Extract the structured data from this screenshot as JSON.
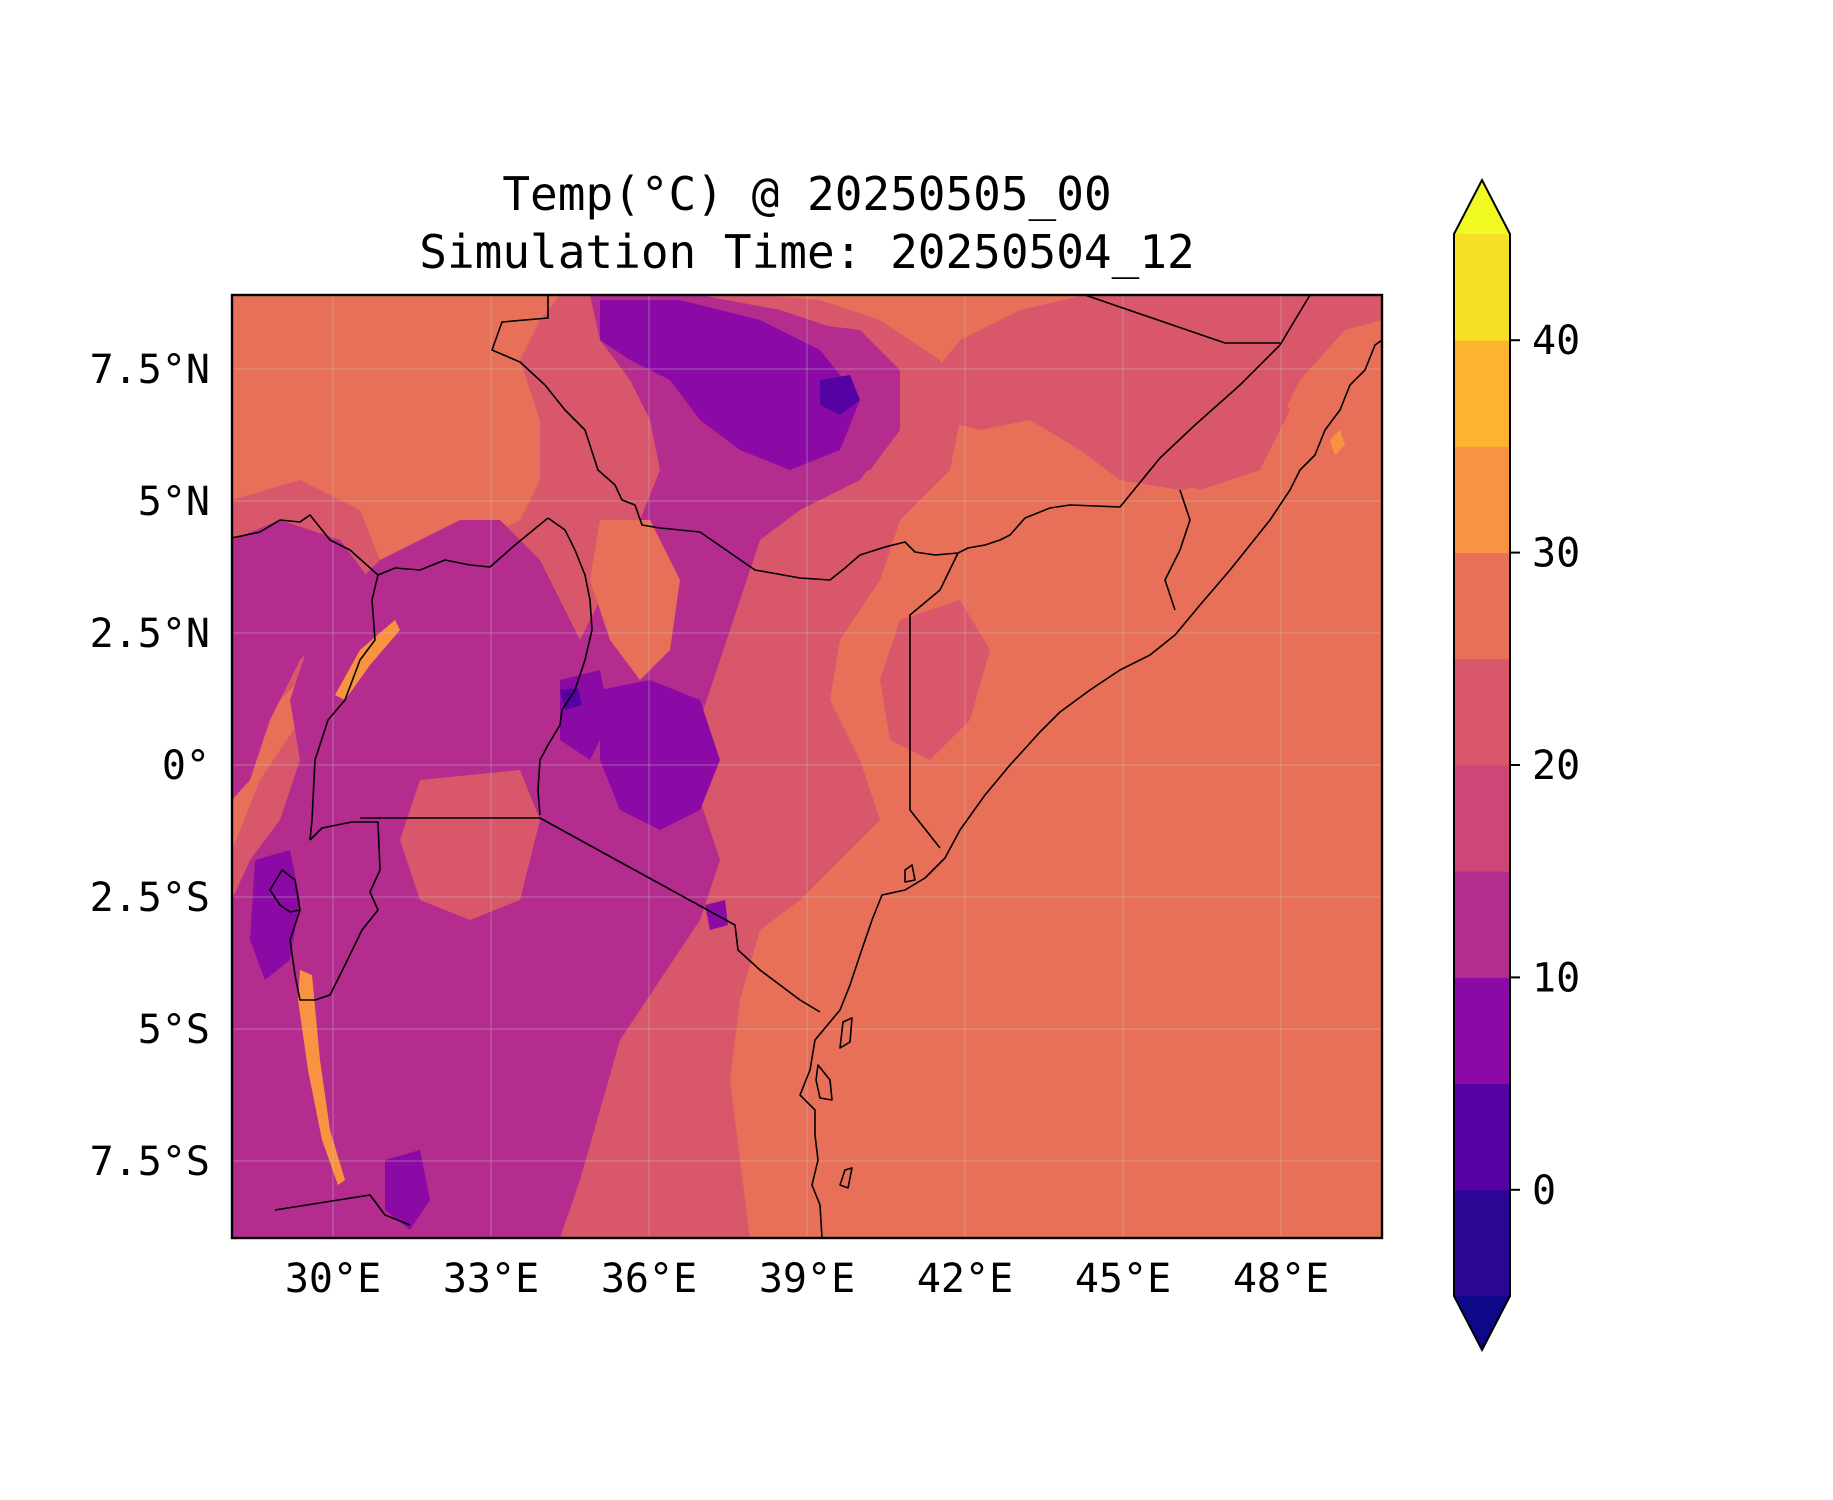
{
  "title": {
    "line1": "Temp(°C) @ 20250505_00",
    "line2": "Simulation Time: 20250504_12"
  },
  "map": {
    "projection": "PlateCarree",
    "lon_range": [
      28.2,
      50.0
    ],
    "lat_range": [
      -8.9,
      8.9
    ],
    "field": "2 m temperature",
    "x_ticks": [
      "30°E",
      "33°E",
      "36°E",
      "39°E",
      "42°E",
      "45°E",
      "48°E"
    ],
    "y_ticks": [
      "7.5°N",
      "5°N",
      "2.5°N",
      "0°",
      "2.5°S",
      "5°S",
      "7.5°S"
    ],
    "gridlines": true,
    "boundaries": "country borders and coastline"
  },
  "colorbar": {
    "colormap": "plasma",
    "levels": [
      -5,
      0,
      5,
      10,
      15,
      20,
      25,
      30,
      35,
      40,
      45
    ],
    "tick_labels": [
      "0",
      "10",
      "20",
      "30",
      "40"
    ],
    "extend": "both",
    "colors": [
      "#0d0887",
      "#2b0594",
      "#5402a3",
      "#8b0aa5",
      "#b32c8e",
      "#cc4778",
      "#d8576b",
      "#e87059",
      "#f89441",
      "#fdb32f",
      "#f5e026",
      "#f0f921"
    ]
  }
}
